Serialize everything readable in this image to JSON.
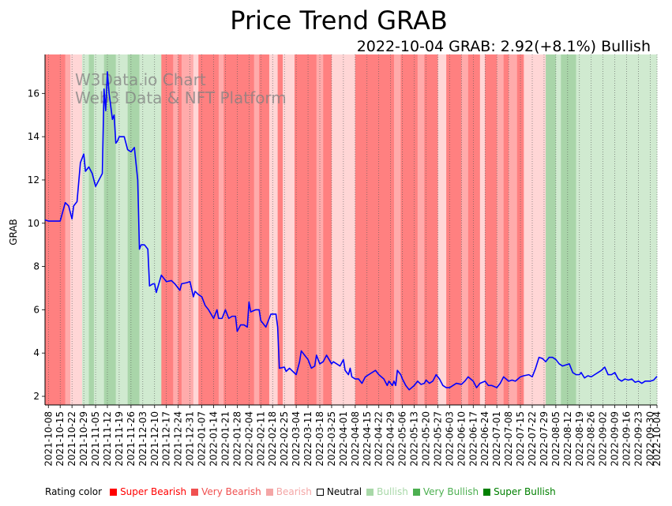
{
  "chart_data": {
    "type": "line",
    "title": "Price Trend GRAB",
    "subtitle": "2022-10-04 GRAB: 2.92(+8.1%) Bullish",
    "watermark": [
      "W3Data.io Chart",
      "Web3 Data & NFT Platform"
    ],
    "ylabel": "GRAB",
    "xlabel": "",
    "ylim": [
      1.6,
      17.8
    ],
    "yticks": [
      2,
      4,
      6,
      8,
      10,
      12,
      14,
      16
    ],
    "x_start": "2021-10-06",
    "x_end": "2022-10-04",
    "xticks": [
      "2021-10-08",
      "2021-10-15",
      "2021-10-22",
      "2021-10-29",
      "2021-11-05",
      "2021-11-12",
      "2021-11-19",
      "2021-11-26",
      "2021-12-03",
      "2021-12-10",
      "2021-12-17",
      "2021-12-24",
      "2021-12-31",
      "2022-01-07",
      "2022-01-14",
      "2022-01-21",
      "2022-01-28",
      "2022-02-04",
      "2022-02-11",
      "2022-02-18",
      "2022-02-25",
      "2022-03-04",
      "2022-03-11",
      "2022-03-18",
      "2022-03-25",
      "2022-04-01",
      "2022-04-08",
      "2022-04-15",
      "2022-04-22",
      "2022-04-29",
      "2022-05-06",
      "2022-05-13",
      "2022-05-20",
      "2022-05-27",
      "2022-06-03",
      "2022-06-10",
      "2022-06-17",
      "2022-06-24",
      "2022-07-01",
      "2022-07-08",
      "2022-07-15",
      "2022-07-22",
      "2022-07-29",
      "2022-08-05",
      "2022-08-12",
      "2022-08-19",
      "2022-08-26",
      "2022-09-02",
      "2022-09-09",
      "2022-09-16",
      "2022-09-23",
      "2022-09-30",
      "2022-10-04"
    ],
    "series": [
      {
        "name": "GRAB",
        "color": "#0000ff",
        "points": [
          [
            "2021-10-06",
            10.15
          ],
          [
            "2021-10-08",
            10.1
          ],
          [
            "2021-10-12",
            10.1
          ],
          [
            "2021-10-15",
            10.1
          ],
          [
            "2021-10-18",
            10.95
          ],
          [
            "2021-10-20",
            10.8
          ],
          [
            "2021-10-22",
            10.2
          ],
          [
            "2021-10-23",
            10.8
          ],
          [
            "2021-10-25",
            11.0
          ],
          [
            "2021-10-27",
            12.8
          ],
          [
            "2021-10-29",
            13.2
          ],
          [
            "2021-10-30",
            12.4
          ],
          [
            "2021-11-01",
            12.6
          ],
          [
            "2021-11-03",
            12.3
          ],
          [
            "2021-11-05",
            11.7
          ],
          [
            "2021-11-07",
            12.0
          ],
          [
            "2021-11-09",
            12.3
          ],
          [
            "2021-11-10",
            16.2
          ],
          [
            "2021-11-11",
            15.2
          ],
          [
            "2021-11-12",
            17.0
          ],
          [
            "2021-11-13",
            16.0
          ],
          [
            "2021-11-15",
            14.8
          ],
          [
            "2021-11-16",
            15.0
          ],
          [
            "2021-11-17",
            13.7
          ],
          [
            "2021-11-18",
            13.8
          ],
          [
            "2021-11-19",
            14.0
          ],
          [
            "2021-11-22",
            14.0
          ],
          [
            "2021-11-24",
            13.4
          ],
          [
            "2021-11-26",
            13.3
          ],
          [
            "2021-11-28",
            13.5
          ],
          [
            "2021-11-30",
            12.0
          ],
          [
            "2021-12-01",
            8.8
          ],
          [
            "2021-12-02",
            9.0
          ],
          [
            "2021-12-04",
            9.0
          ],
          [
            "2021-12-06",
            8.8
          ],
          [
            "2021-12-07",
            7.1
          ],
          [
            "2021-12-09",
            7.2
          ],
          [
            "2021-12-10",
            7.2
          ],
          [
            "2021-12-11",
            6.8
          ],
          [
            "2021-12-14",
            7.6
          ],
          [
            "2021-12-17",
            7.3
          ],
          [
            "2021-12-20",
            7.35
          ],
          [
            "2021-12-22",
            7.2
          ],
          [
            "2021-12-24",
            7.0
          ],
          [
            "2021-12-25",
            6.9
          ],
          [
            "2021-12-26",
            7.2
          ],
          [
            "2021-12-29",
            7.25
          ],
          [
            "2021-12-31",
            7.3
          ],
          [
            "2022-01-02",
            6.6
          ],
          [
            "2022-01-03",
            6.85
          ],
          [
            "2022-01-05",
            6.7
          ],
          [
            "2022-01-07",
            6.6
          ],
          [
            "2022-01-09",
            6.2
          ],
          [
            "2022-01-11",
            6.0
          ],
          [
            "2022-01-14",
            5.6
          ],
          [
            "2022-01-16",
            6.0
          ],
          [
            "2022-01-17",
            5.6
          ],
          [
            "2022-01-19",
            5.6
          ],
          [
            "2022-01-21",
            6.0
          ],
          [
            "2022-01-23",
            5.6
          ],
          [
            "2022-01-25",
            5.7
          ],
          [
            "2022-01-27",
            5.7
          ],
          [
            "2022-01-28",
            5.0
          ],
          [
            "2022-01-30",
            5.3
          ],
          [
            "2022-02-01",
            5.3
          ],
          [
            "2022-02-03",
            5.2
          ],
          [
            "2022-02-04",
            6.35
          ],
          [
            "2022-02-05",
            5.9
          ],
          [
            "2022-02-08",
            6.0
          ],
          [
            "2022-02-10",
            6.0
          ],
          [
            "2022-02-11",
            5.5
          ],
          [
            "2022-02-14",
            5.2
          ],
          [
            "2022-02-17",
            5.8
          ],
          [
            "2022-02-20",
            5.8
          ],
          [
            "2022-02-21",
            5.2
          ],
          [
            "2022-02-22",
            3.3
          ],
          [
            "2022-02-25",
            3.35
          ],
          [
            "2022-02-26",
            3.15
          ],
          [
            "2022-02-28",
            3.3
          ],
          [
            "2022-03-04",
            3.0
          ],
          [
            "2022-03-06",
            3.6
          ],
          [
            "2022-03-07",
            4.1
          ],
          [
            "2022-03-09",
            3.9
          ],
          [
            "2022-03-11",
            3.7
          ],
          [
            "2022-03-13",
            3.3
          ],
          [
            "2022-03-15",
            3.4
          ],
          [
            "2022-03-16",
            3.9
          ],
          [
            "2022-03-18",
            3.5
          ],
          [
            "2022-03-20",
            3.6
          ],
          [
            "2022-03-22",
            3.9
          ],
          [
            "2022-03-25",
            3.5
          ],
          [
            "2022-03-26",
            3.6
          ],
          [
            "2022-03-28",
            3.5
          ],
          [
            "2022-03-30",
            3.4
          ],
          [
            "2022-04-01",
            3.7
          ],
          [
            "2022-04-02",
            3.2
          ],
          [
            "2022-04-04",
            3.0
          ],
          [
            "2022-04-05",
            3.3
          ],
          [
            "2022-04-06",
            2.9
          ],
          [
            "2022-04-08",
            2.8
          ],
          [
            "2022-04-10",
            2.8
          ],
          [
            "2022-04-12",
            2.6
          ],
          [
            "2022-04-14",
            2.9
          ],
          [
            "2022-04-17",
            3.05
          ],
          [
            "2022-04-20",
            3.2
          ],
          [
            "2022-04-22",
            3.0
          ],
          [
            "2022-04-25",
            2.8
          ],
          [
            "2022-04-27",
            2.5
          ],
          [
            "2022-04-28",
            2.7
          ],
          [
            "2022-04-30",
            2.5
          ],
          [
            "2022-05-01",
            2.7
          ],
          [
            "2022-05-02",
            2.5
          ],
          [
            "2022-05-03",
            3.2
          ],
          [
            "2022-05-05",
            3.0
          ],
          [
            "2022-05-06",
            2.8
          ],
          [
            "2022-05-08",
            2.5
          ],
          [
            "2022-05-10",
            2.3
          ],
          [
            "2022-05-13",
            2.5
          ],
          [
            "2022-05-15",
            2.7
          ],
          [
            "2022-05-17",
            2.55
          ],
          [
            "2022-05-19",
            2.6
          ],
          [
            "2022-05-20",
            2.75
          ],
          [
            "2022-05-22",
            2.6
          ],
          [
            "2022-05-24",
            2.7
          ],
          [
            "2022-05-26",
            3.0
          ],
          [
            "2022-05-28",
            2.8
          ],
          [
            "2022-05-30",
            2.5
          ],
          [
            "2022-06-01",
            2.4
          ],
          [
            "2022-06-03",
            2.4
          ],
          [
            "2022-06-05",
            2.5
          ],
          [
            "2022-06-07",
            2.6
          ],
          [
            "2022-06-10",
            2.55
          ],
          [
            "2022-06-12",
            2.7
          ],
          [
            "2022-06-14",
            2.9
          ],
          [
            "2022-06-17",
            2.7
          ],
          [
            "2022-06-19",
            2.4
          ],
          [
            "2022-06-21",
            2.6
          ],
          [
            "2022-06-24",
            2.7
          ],
          [
            "2022-06-26",
            2.5
          ],
          [
            "2022-06-28",
            2.5
          ],
          [
            "2022-07-01",
            2.4
          ],
          [
            "2022-07-03",
            2.6
          ],
          [
            "2022-07-05",
            2.9
          ],
          [
            "2022-07-08",
            2.7
          ],
          [
            "2022-07-10",
            2.75
          ],
          [
            "2022-07-12",
            2.7
          ],
          [
            "2022-07-15",
            2.9
          ],
          [
            "2022-07-17",
            2.95
          ],
          [
            "2022-07-20",
            3.0
          ],
          [
            "2022-07-22",
            2.9
          ],
          [
            "2022-07-24",
            3.3
          ],
          [
            "2022-07-26",
            3.8
          ],
          [
            "2022-07-28",
            3.75
          ],
          [
            "2022-07-30",
            3.6
          ],
          [
            "2022-08-01",
            3.8
          ],
          [
            "2022-08-03",
            3.8
          ],
          [
            "2022-08-05",
            3.7
          ],
          [
            "2022-08-07",
            3.5
          ],
          [
            "2022-08-09",
            3.4
          ],
          [
            "2022-08-11",
            3.45
          ],
          [
            "2022-08-13",
            3.5
          ],
          [
            "2022-08-15",
            3.1
          ],
          [
            "2022-08-17",
            3.0
          ],
          [
            "2022-08-19",
            3.0
          ],
          [
            "2022-08-20",
            3.1
          ],
          [
            "2022-08-22",
            2.85
          ],
          [
            "2022-08-24",
            2.95
          ],
          [
            "2022-08-26",
            2.9
          ],
          [
            "2022-08-28",
            3.0
          ],
          [
            "2022-08-30",
            3.1
          ],
          [
            "2022-09-01",
            3.2
          ],
          [
            "2022-09-03",
            3.35
          ],
          [
            "2022-09-05",
            3.0
          ],
          [
            "2022-09-07",
            3.0
          ],
          [
            "2022-09-09",
            3.1
          ],
          [
            "2022-09-11",
            2.8
          ],
          [
            "2022-09-13",
            2.7
          ],
          [
            "2022-09-15",
            2.8
          ],
          [
            "2022-09-17",
            2.75
          ],
          [
            "2022-09-19",
            2.8
          ],
          [
            "2022-09-21",
            2.65
          ],
          [
            "2022-09-23",
            2.7
          ],
          [
            "2022-09-25",
            2.6
          ],
          [
            "2022-09-27",
            2.7
          ],
          [
            "2022-09-30",
            2.7
          ],
          [
            "2022-10-02",
            2.75
          ],
          [
            "2022-10-04",
            2.92
          ]
        ]
      }
    ],
    "rating_bands": [
      [
        "2021-10-06",
        "2021-10-18",
        "super_bearish"
      ],
      [
        "2021-10-18",
        "2021-10-21",
        "very_bearish"
      ],
      [
        "2021-10-21",
        "2021-10-28",
        "bearish"
      ],
      [
        "2021-10-28",
        "2021-11-01",
        "bullish"
      ],
      [
        "2021-11-01",
        "2021-11-04",
        "very_bullish"
      ],
      [
        "2021-11-04",
        "2021-11-10",
        "bullish"
      ],
      [
        "2021-11-10",
        "2021-11-17",
        "very_bullish"
      ],
      [
        "2021-11-17",
        "2021-11-24",
        "bullish"
      ],
      [
        "2021-11-24",
        "2021-12-01",
        "very_bullish"
      ],
      [
        "2021-12-01",
        "2021-12-14",
        "bullish"
      ],
      [
        "2021-12-14",
        "2021-12-21",
        "super_bearish"
      ],
      [
        "2021-12-21",
        "2021-12-24",
        "very_bearish"
      ],
      [
        "2021-12-24",
        "2021-12-26",
        "super_bearish"
      ],
      [
        "2021-12-26",
        "2022-01-02",
        "very_bearish"
      ],
      [
        "2022-01-02",
        "2022-01-05",
        "bearish"
      ],
      [
        "2022-01-05",
        "2022-01-17",
        "super_bearish"
      ],
      [
        "2022-01-17",
        "2022-01-20",
        "very_bearish"
      ],
      [
        "2022-01-20",
        "2022-02-07",
        "super_bearish"
      ],
      [
        "2022-02-07",
        "2022-02-10",
        "very_bearish"
      ],
      [
        "2022-02-10",
        "2022-02-16",
        "super_bearish"
      ],
      [
        "2022-02-16",
        "2022-02-21",
        "bearish"
      ],
      [
        "2022-02-21",
        "2022-02-24",
        "super_bearish"
      ],
      [
        "2022-02-24",
        "2022-03-03",
        "bearish"
      ],
      [
        "2022-03-03",
        "2022-03-16",
        "super_bearish"
      ],
      [
        "2022-03-16",
        "2022-03-20",
        "very_bearish"
      ],
      [
        "2022-03-20",
        "2022-03-25",
        "super_bearish"
      ],
      [
        "2022-03-25",
        "2022-04-08",
        "bearish"
      ],
      [
        "2022-04-08",
        "2022-05-01",
        "super_bearish"
      ],
      [
        "2022-05-01",
        "2022-05-05",
        "very_bearish"
      ],
      [
        "2022-05-05",
        "2022-05-15",
        "super_bearish"
      ],
      [
        "2022-05-15",
        "2022-05-19",
        "very_bearish"
      ],
      [
        "2022-05-19",
        "2022-05-27",
        "super_bearish"
      ],
      [
        "2022-05-27",
        "2022-06-01",
        "bearish"
      ],
      [
        "2022-06-01",
        "2022-06-10",
        "super_bearish"
      ],
      [
        "2022-06-10",
        "2022-06-14",
        "very_bearish"
      ],
      [
        "2022-06-14",
        "2022-06-21",
        "super_bearish"
      ],
      [
        "2022-06-21",
        "2022-06-24",
        "bearish"
      ],
      [
        "2022-06-24",
        "2022-07-01",
        "super_bearish"
      ],
      [
        "2022-07-01",
        "2022-07-05",
        "very_bearish"
      ],
      [
        "2022-07-05",
        "2022-07-08",
        "super_bearish"
      ],
      [
        "2022-07-08",
        "2022-07-13",
        "very_bearish"
      ],
      [
        "2022-07-13",
        "2022-07-17",
        "super_bearish"
      ],
      [
        "2022-07-17",
        "2022-07-30",
        "bearish"
      ],
      [
        "2022-07-30",
        "2022-08-05",
        "very_bullish"
      ],
      [
        "2022-08-05",
        "2022-08-08",
        "bullish"
      ],
      [
        "2022-08-08",
        "2022-08-17",
        "very_bullish"
      ],
      [
        "2022-08-17",
        "2022-08-21",
        "bullish"
      ],
      [
        "2022-08-21",
        "2022-10-04",
        "bullish"
      ]
    ],
    "legend": {
      "title": "Rating color",
      "items": [
        {
          "key": "super_bearish",
          "label": "Super Bearish",
          "swatch": "#ff0000",
          "text_color": "#ff0000"
        },
        {
          "key": "very_bearish",
          "label": "Very Bearish",
          "swatch": "#f05050",
          "text_color": "#f05050"
        },
        {
          "key": "bearish",
          "label": "Bearish",
          "swatch": "#f4a6a6",
          "text_color": "#f4a6a6"
        },
        {
          "key": "neutral",
          "label": "Neutral",
          "swatch": "#ffffff",
          "text_color": "#000000"
        },
        {
          "key": "bullish",
          "label": "Bullish",
          "swatch": "#a8d8a8",
          "text_color": "#a8d8a8"
        },
        {
          "key": "very_bullish",
          "label": "Very Bullish",
          "swatch": "#4caf50",
          "text_color": "#4caf50"
        },
        {
          "key": "super_bullish",
          "label": "Super Bullish",
          "swatch": "#008000",
          "text_color": "#008000"
        }
      ]
    },
    "band_colors": {
      "super_bearish": "#ff8080",
      "very_bearish": "#ffabab",
      "bearish": "#ffd6d6",
      "neutral": "#ffffff",
      "bullish": "#d0ead0",
      "very_bullish": "#a9d5a9",
      "super_bullish": "#80bf80"
    }
  }
}
